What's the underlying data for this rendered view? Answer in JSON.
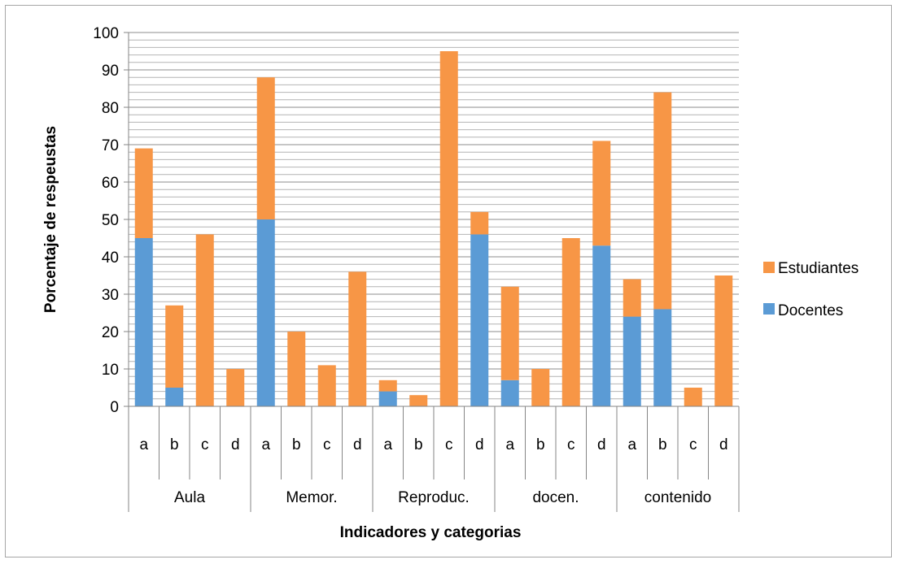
{
  "chart_data": {
    "type": "bar",
    "stacked": true,
    "groups": [
      "Aula",
      "Memor.",
      "Reproduc.",
      "docen.",
      "contenido"
    ],
    "subcategories": [
      "a",
      "b",
      "c",
      "d"
    ],
    "categories": [
      "Aula a",
      "Aula b",
      "Aula c",
      "Aula d",
      "Memor. a",
      "Memor. b",
      "Memor. c",
      "Memor. d",
      "Reproduc. a",
      "Reproduc. b",
      "Reproduc. c",
      "Reproduc. d",
      "docen. a",
      "docen. b",
      "docen. c",
      "docen. d",
      "contenido a",
      "contenido b",
      "contenido c",
      "contenido d"
    ],
    "series": [
      {
        "name": "Docentes",
        "color": "#5b9bd5",
        "values": [
          45,
          5,
          0,
          0,
          50,
          0,
          0,
          0,
          4,
          0,
          0,
          46,
          7,
          0,
          0,
          43,
          24,
          26,
          0,
          0
        ]
      },
      {
        "name": "Estudiantes",
        "color": "#f79646",
        "values": [
          24,
          22,
          46,
          10,
          38,
          20,
          11,
          36,
          3,
          3,
          95,
          6,
          25,
          10,
          45,
          28,
          10,
          58,
          5,
          35
        ]
      }
    ],
    "xlabel": "Indicadores  y categorias",
    "ylabel": "Porcentaje de respeustas",
    "ylim": [
      0,
      100
    ],
    "yticks": [
      0,
      10,
      20,
      30,
      40,
      50,
      60,
      70,
      80,
      90,
      100
    ],
    "grid": "horizontal major and minor",
    "legend": {
      "position": "right",
      "entries": [
        "Estudiantes",
        "Docentes"
      ]
    }
  }
}
